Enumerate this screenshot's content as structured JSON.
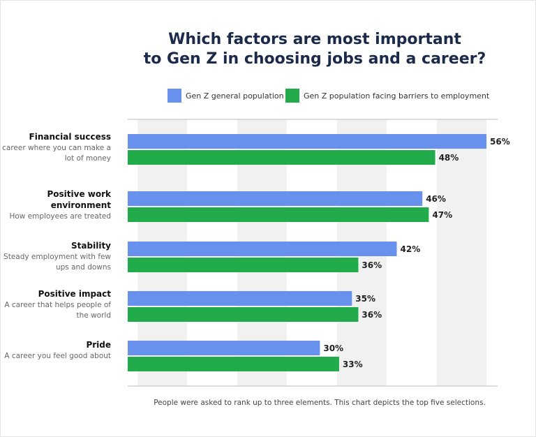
{
  "chart_data": {
    "type": "bar",
    "orientation": "horizontal",
    "title": "Which factors are most important to Gen Z in choosing jobs and a career?",
    "title_lines": [
      "Which factors are most important",
      "to Gen Z in choosing jobs and a career?"
    ],
    "categories": [
      {
        "name": "Financial success",
        "description": "A career where you can make a lot of money"
      },
      {
        "name": "Positive work environment",
        "description": "How employees are treated"
      },
      {
        "name": "Stability",
        "description": "Steady employment with few ups and downs"
      },
      {
        "name": "Positive impact",
        "description": "A career that helps people of the world"
      },
      {
        "name": "Pride",
        "description": "A career you feel good about"
      }
    ],
    "series": [
      {
        "name": "Gen Z general population",
        "color": "#6891ee",
        "values": [
          56,
          46,
          42,
          35,
          30
        ]
      },
      {
        "name": "Gen Z population facing barriers to employment",
        "color": "#22ab4a",
        "values": [
          48,
          47,
          36,
          36,
          33
        ]
      }
    ],
    "value_suffix": "%",
    "legend_position": "top",
    "grid": "alternating vertical bands",
    "footnote": "People were asked to rank up to three elements. This chart depicts the top five selections."
  }
}
